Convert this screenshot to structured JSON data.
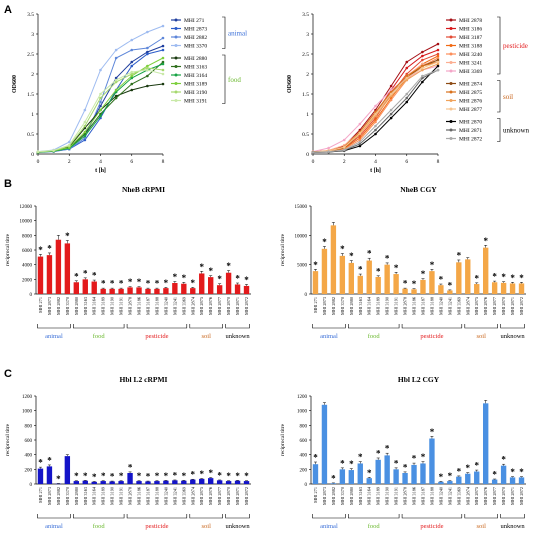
{
  "panels": {
    "a": "A",
    "b": "B",
    "c": "C"
  },
  "chart_data": [
    {
      "type": "line",
      "panel": "A",
      "title": "",
      "xlabel": "t [h]",
      "ylabel": "OD600",
      "xlim": [
        0,
        8
      ],
      "ylim": [
        0,
        3.5
      ],
      "xticks": [
        0,
        2,
        4,
        6,
        8
      ],
      "yticks": [
        0,
        0.5,
        1,
        1.5,
        2,
        2.5,
        3,
        3.5
      ],
      "x": [
        0,
        1,
        2,
        3,
        4,
        5,
        6,
        7,
        8
      ],
      "legend_position": "right",
      "groups": [
        {
          "label": "animal",
          "color": "#3a6fd8",
          "names": [
            "MHI 271",
            "MHI 2873",
            "MHI 2882",
            "MHI 3370"
          ]
        },
        {
          "label": "food",
          "color": "#6ab82e",
          "names": [
            "MHI 2880",
            "MHI 3163",
            "MHI 3164",
            "MHI 3189",
            "MHI 3190",
            "MHI 3191"
          ]
        }
      ],
      "series": [
        {
          "name": "MHI 271",
          "color": "#1f3e9e",
          "values": [
            0.05,
            0.08,
            0.15,
            0.5,
            1.2,
            1.9,
            2.3,
            2.55,
            2.7
          ]
        },
        {
          "name": "MHI 2873",
          "color": "#2c5cc9",
          "values": [
            0.05,
            0.07,
            0.12,
            0.35,
            0.9,
            1.6,
            2.2,
            2.5,
            2.6
          ]
        },
        {
          "name": "MHI 2882",
          "color": "#5d86d9",
          "values": [
            0.04,
            0.06,
            0.12,
            0.4,
            1.3,
            2.4,
            2.6,
            2.65,
            2.9
          ]
        },
        {
          "name": "MHI 3370",
          "color": "#9ebbf0",
          "values": [
            0.06,
            0.1,
            0.3,
            1.1,
            2.1,
            2.6,
            2.85,
            3.05,
            3.2
          ]
        },
        {
          "name": "MHI 2880",
          "color": "#1a3a10",
          "values": [
            0.05,
            0.08,
            0.18,
            0.65,
            1.1,
            1.45,
            1.6,
            1.7,
            1.75
          ]
        },
        {
          "name": "MHI 3163",
          "color": "#2e6e1c",
          "values": [
            0.05,
            0.07,
            0.15,
            0.5,
            1.0,
            1.4,
            1.75,
            1.95,
            2.3
          ]
        },
        {
          "name": "MHI 3164",
          "color": "#17a344",
          "values": [
            0.04,
            0.07,
            0.14,
            0.45,
            0.95,
            1.55,
            1.9,
            2.1,
            2.25
          ]
        },
        {
          "name": "MHI 3189",
          "color": "#7ccf3a",
          "values": [
            0.05,
            0.08,
            0.16,
            0.55,
            1.1,
            1.6,
            1.95,
            2.2,
            2.4
          ]
        },
        {
          "name": "MHI 3190",
          "color": "#a6d86e",
          "values": [
            0.05,
            0.08,
            0.2,
            0.7,
            1.4,
            1.8,
            2.0,
            2.15,
            2.1
          ]
        },
        {
          "name": "MHI 3191",
          "color": "#c9e9a8",
          "values": [
            0.06,
            0.09,
            0.22,
            0.8,
            1.5,
            1.85,
            2.05,
            2.1,
            2.0
          ]
        }
      ]
    },
    {
      "type": "line",
      "panel": "A",
      "title": "",
      "xlabel": "t [h]",
      "ylabel": "OD600",
      "xlim": [
        0,
        8
      ],
      "ylim": [
        0,
        3.5
      ],
      "xticks": [
        0,
        2,
        4,
        6,
        8
      ],
      "yticks": [
        0,
        0.5,
        1,
        1.5,
        2,
        2.5,
        3,
        3.5
      ],
      "x": [
        0,
        1,
        2,
        3,
        4,
        5,
        6,
        7,
        8
      ],
      "legend_position": "right",
      "groups": [
        {
          "label": "pesticide",
          "color": "#e31a1c",
          "names": [
            "MHI 2878",
            "MHI 3186",
            "MHI 3187",
            "MHI 3188",
            "MHI 3240",
            "MHI 3241",
            "MHI 3369"
          ]
        },
        {
          "label": "soil",
          "color": "#c8651b",
          "names": [
            "MHI 2874",
            "MHI 2875",
            "MHI 2876",
            "MHI 2877"
          ]
        },
        {
          "label": "unknown",
          "color": "#000000",
          "names": [
            "MHI 2870",
            "MHI 2871",
            "MHI 2872"
          ]
        }
      ],
      "series": [
        {
          "name": "MHI 2878",
          "color": "#a50f15",
          "values": [
            0.05,
            0.08,
            0.2,
            0.6,
            1.1,
            1.7,
            2.3,
            2.55,
            2.75
          ]
        },
        {
          "name": "MHI 3186",
          "color": "#d7191c",
          "values": [
            0.05,
            0.08,
            0.18,
            0.5,
            1.0,
            1.6,
            2.15,
            2.45,
            2.6
          ]
        },
        {
          "name": "MHI 3187",
          "color": "#e34a33",
          "values": [
            0.05,
            0.07,
            0.15,
            0.45,
            0.9,
            1.5,
            2.0,
            2.35,
            2.5
          ]
        },
        {
          "name": "MHI 3188",
          "color": "#f16913",
          "values": [
            0.05,
            0.07,
            0.14,
            0.4,
            0.85,
            1.4,
            1.9,
            2.25,
            2.45
          ]
        },
        {
          "name": "MHI 3240",
          "color": "#fc8d59",
          "values": [
            0.04,
            0.06,
            0.12,
            0.35,
            0.8,
            1.35,
            1.85,
            2.2,
            2.4
          ]
        },
        {
          "name": "MHI 3241",
          "color": "#fcae91",
          "values": [
            0.05,
            0.09,
            0.22,
            0.55,
            1.05,
            1.55,
            1.95,
            2.25,
            2.3
          ]
        },
        {
          "name": "MHI 3369",
          "color": "#f4a6c8",
          "values": [
            0.06,
            0.15,
            0.35,
            0.75,
            1.2,
            1.6,
            1.9,
            2.1,
            2.2
          ]
        },
        {
          "name": "MHI 2874",
          "color": "#8c4a12",
          "values": [
            0.05,
            0.07,
            0.15,
            0.5,
            1.0,
            1.5,
            1.9,
            2.2,
            2.35
          ]
        },
        {
          "name": "MHI 2875",
          "color": "#d9711c",
          "values": [
            0.05,
            0.08,
            0.18,
            0.55,
            1.05,
            1.55,
            1.95,
            2.2,
            2.3
          ]
        },
        {
          "name": "MHI 2876",
          "color": "#f0a25a",
          "values": [
            0.05,
            0.07,
            0.16,
            0.5,
            0.95,
            1.45,
            1.85,
            2.1,
            2.25
          ]
        },
        {
          "name": "MHI 2877",
          "color": "#f6c48f",
          "values": [
            0.05,
            0.08,
            0.17,
            0.52,
            1.0,
            1.5,
            1.9,
            2.15,
            2.3
          ]
        },
        {
          "name": "MHI 2870",
          "color": "#000000",
          "values": [
            0.04,
            0.05,
            0.08,
            0.2,
            0.5,
            0.9,
            1.3,
            1.8,
            2.2
          ]
        },
        {
          "name": "MHI 2871",
          "color": "#666666",
          "values": [
            0.04,
            0.05,
            0.09,
            0.25,
            0.6,
            1.0,
            1.4,
            1.9,
            2.1
          ]
        },
        {
          "name": "MHI 2872",
          "color": "#aaaaaa",
          "values": [
            0.04,
            0.06,
            0.1,
            0.3,
            0.7,
            1.1,
            1.5,
            1.95,
            2.1
          ]
        }
      ]
    },
    {
      "type": "bar",
      "panel": "B",
      "title": "NheB cRPMI",
      "xlabel": "",
      "ylabel": "reciprocal titre",
      "ylim": [
        0,
        12000
      ],
      "yticks": [
        0,
        2000,
        4000,
        6000,
        8000,
        10000,
        12000
      ],
      "color": "#e31a1c",
      "categories": [
        "MHI 271",
        "MHI 2873",
        "MHI 2882",
        "MHI 3370",
        "MHI 2880",
        "MHI 3163",
        "MHI 3164",
        "MHI 3189",
        "MHI 3190",
        "MHI 3191",
        "MHI 2878",
        "MHI 3186",
        "MHI 3187",
        "MHI 3188",
        "MHI 3240",
        "MHI 3241",
        "MHI 3369",
        "MHI 2874",
        "MHI 2875",
        "MHI 2876",
        "MHI 2877",
        "MHI 2870",
        "MHI 2871",
        "MHI 2872"
      ],
      "values": [
        5100,
        5300,
        7400,
        6900,
        1600,
        2000,
        1700,
        700,
        700,
        700,
        900,
        900,
        700,
        700,
        800,
        1500,
        1400,
        800,
        2800,
        2300,
        1200,
        2900,
        1300,
        1100
      ],
      "errors": [
        300,
        300,
        600,
        400,
        200,
        200,
        200,
        100,
        100,
        100,
        100,
        100,
        100,
        100,
        100,
        200,
        200,
        100,
        300,
        200,
        200,
        300,
        200,
        200
      ],
      "significant": [
        true,
        true,
        false,
        true,
        true,
        true,
        true,
        true,
        true,
        true,
        true,
        true,
        true,
        true,
        true,
        true,
        true,
        true,
        true,
        true,
        true,
        true,
        true,
        true
      ],
      "groups": [
        {
          "label": "animal",
          "color": "#3a6fd8",
          "count": 4
        },
        {
          "label": "food",
          "color": "#6ab82e",
          "count": 6
        },
        {
          "label": "pesticide",
          "color": "#e31a1c",
          "count": 7
        },
        {
          "label": "soil",
          "color": "#c8651b",
          "count": 4
        },
        {
          "label": "unknown",
          "color": "#000000",
          "count": 3
        }
      ]
    },
    {
      "type": "bar",
      "panel": "B",
      "title": "NheB CGY",
      "xlabel": "",
      "ylabel": "reciprocal titre",
      "ylim": [
        0,
        15000
      ],
      "yticks": [
        0,
        5000,
        10000,
        15000
      ],
      "color": "#f4a747",
      "categories": [
        "MHI 271",
        "MHI 2873",
        "MHI 2882",
        "MHI 3370",
        "MHI 2880",
        "MHI 3163",
        "MHI 3164",
        "MHI 3189",
        "MHI 3190",
        "MHI 3191",
        "MHI 2878",
        "MHI 3186",
        "MHI 3187",
        "MHI 3188",
        "MHI 3240",
        "MHI 3241",
        "MHI 3369",
        "MHI 2874",
        "MHI 2875",
        "MHI 2876",
        "MHI 2877",
        "MHI 2870",
        "MHI 2871",
        "MHI 2872"
      ],
      "values": [
        3900,
        7700,
        11700,
        6500,
        5300,
        3100,
        5700,
        2900,
        5000,
        3400,
        900,
        800,
        2400,
        3900,
        1500,
        600,
        5400,
        5900,
        1700,
        7900,
        2000,
        1900,
        1800,
        1800
      ],
      "errors": [
        300,
        400,
        500,
        400,
        400,
        300,
        400,
        200,
        300,
        300,
        100,
        100,
        200,
        300,
        200,
        100,
        400,
        300,
        200,
        400,
        200,
        200,
        200,
        200
      ],
      "significant": [
        true,
        true,
        false,
        true,
        true,
        true,
        true,
        true,
        true,
        true,
        true,
        true,
        true,
        true,
        true,
        true,
        true,
        false,
        true,
        true,
        true,
        true,
        true,
        true
      ],
      "groups": [
        {
          "label": "animal",
          "color": "#3a6fd8",
          "count": 4
        },
        {
          "label": "food",
          "color": "#6ab82e",
          "count": 6
        },
        {
          "label": "pesticide",
          "color": "#e31a1c",
          "count": 7
        },
        {
          "label": "soil",
          "color": "#c8651b",
          "count": 4
        },
        {
          "label": "unknown",
          "color": "#000000",
          "count": 3
        }
      ]
    },
    {
      "type": "bar",
      "panel": "C",
      "title": "Hbl L2 cRPMI",
      "xlabel": "",
      "ylabel": "reciprocal titre",
      "ylim": [
        0,
        1200
      ],
      "yticks": [
        0,
        200,
        400,
        600,
        800,
        1000,
        1200
      ],
      "color": "#1414c8",
      "categories": [
        "MHI 271",
        "MHI 2873",
        "MHI 2882",
        "MHI 3370",
        "MHI 2880",
        "MHI 3163",
        "MHI 3164",
        "MHI 3189",
        "MHI 3190",
        "MHI 3191",
        "MHI 2878",
        "MHI 3186",
        "MHI 3187",
        "MHI 3188",
        "MHI 3240",
        "MHI 3241",
        "MHI 3369",
        "MHI 2874",
        "MHI 2875",
        "MHI 2876",
        "MHI 2877",
        "MHI 2870",
        "MHI 2871",
        "MHI 2872"
      ],
      "values": [
        210,
        240,
        5,
        380,
        40,
        45,
        30,
        40,
        35,
        40,
        150,
        40,
        35,
        40,
        45,
        50,
        45,
        60,
        70,
        80,
        50,
        40,
        45,
        40
      ],
      "errors": [
        20,
        20,
        2,
        20,
        5,
        5,
        5,
        5,
        5,
        5,
        15,
        5,
        5,
        5,
        5,
        5,
        5,
        5,
        5,
        8,
        5,
        5,
        5,
        5
      ],
      "significant": [
        true,
        true,
        true,
        false,
        true,
        true,
        true,
        true,
        true,
        true,
        true,
        true,
        true,
        true,
        true,
        true,
        true,
        true,
        true,
        true,
        true,
        true,
        true,
        true
      ],
      "groups": [
        {
          "label": "animal",
          "color": "#3a6fd8",
          "count": 4
        },
        {
          "label": "food",
          "color": "#6ab82e",
          "count": 6
        },
        {
          "label": "pesticide",
          "color": "#e31a1c",
          "count": 7
        },
        {
          "label": "soil",
          "color": "#c8651b",
          "count": 4
        },
        {
          "label": "unknown",
          "color": "#000000",
          "count": 3
        }
      ]
    },
    {
      "type": "bar",
      "panel": "C",
      "title": "Hbl L2 CGY",
      "xlabel": "",
      "ylabel": "reciprocal titre",
      "ylim": [
        0,
        1200
      ],
      "yticks": [
        0,
        200,
        400,
        600,
        800,
        1000,
        1200
      ],
      "color": "#4a90e2",
      "categories": [
        "MHI 271",
        "MHI 2873",
        "MHI 2882",
        "MHI 3370",
        "MHI 2880",
        "MHI 3163",
        "MHI 3164",
        "MHI 3189",
        "MHI 3190",
        "MHI 3191",
        "MHI 2878",
        "MHI 3186",
        "MHI 3187",
        "MHI 3188",
        "MHI 3240",
        "MHI 3241",
        "MHI 3369",
        "MHI 2874",
        "MHI 2875",
        "MHI 2876",
        "MHI 2877",
        "MHI 2870",
        "MHI 2871",
        "MHI 2872"
      ],
      "values": [
        270,
        1080,
        10,
        200,
        190,
        280,
        80,
        330,
        390,
        200,
        150,
        260,
        280,
        620,
        30,
        40,
        100,
        140,
        170,
        1100,
        60,
        250,
        90,
        90
      ],
      "errors": [
        30,
        30,
        5,
        20,
        20,
        25,
        10,
        25,
        30,
        20,
        15,
        25,
        25,
        30,
        5,
        5,
        10,
        15,
        20,
        40,
        8,
        20,
        10,
        10
      ],
      "significant": [
        true,
        false,
        true,
        true,
        true,
        true,
        true,
        true,
        true,
        true,
        true,
        true,
        true,
        true,
        true,
        true,
        true,
        true,
        true,
        false,
        true,
        true,
        true,
        true
      ],
      "groups": [
        {
          "label": "animal",
          "color": "#3a6fd8",
          "count": 4
        },
        {
          "label": "food",
          "color": "#6ab82e",
          "count": 6
        },
        {
          "label": "pesticide",
          "color": "#e31a1c",
          "count": 7
        },
        {
          "label": "soil",
          "color": "#c8651b",
          "count": 4
        },
        {
          "label": "unknown",
          "color": "#000000",
          "count": 3
        }
      ]
    }
  ]
}
